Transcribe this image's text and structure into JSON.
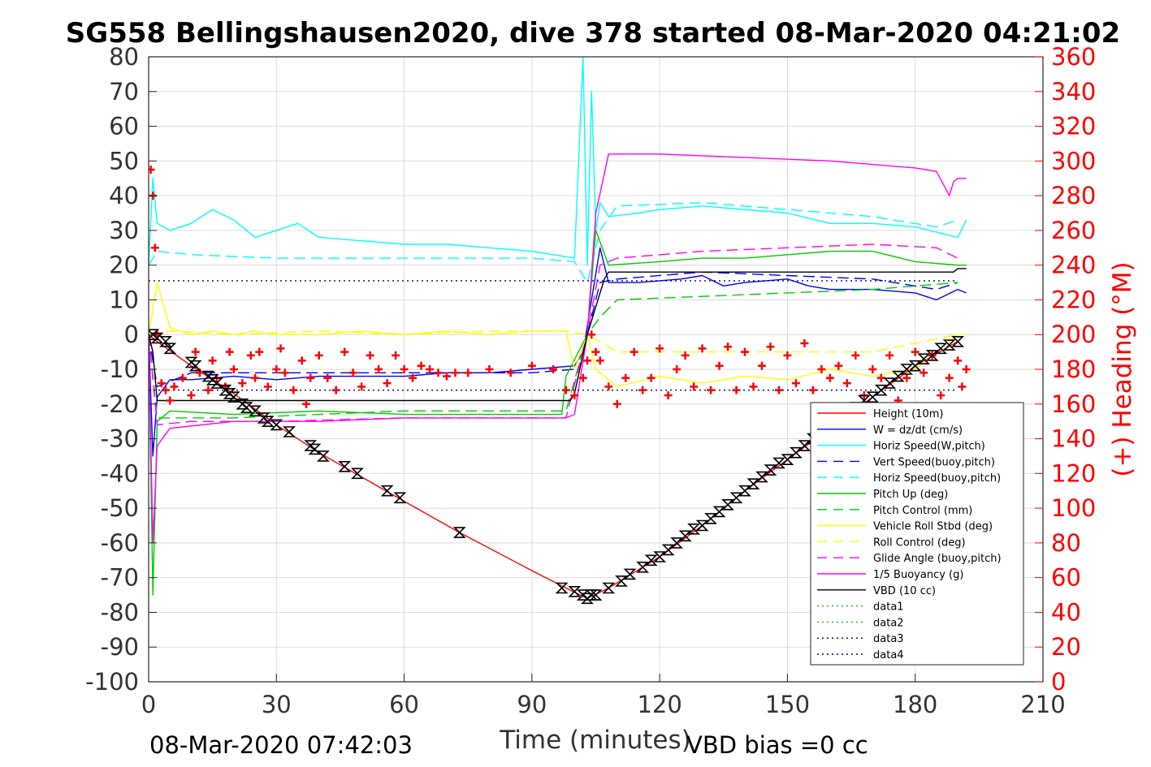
{
  "chart_data": {
    "type": "line",
    "title": "SG558 Bellingshausen2020, dive 378 started 08-Mar-2020 04:21:02",
    "xlabel": "Time (minutes)",
    "ylabel_right": "(+) Heading (°M)",
    "xlim": [
      0,
      210
    ],
    "ylim_left": [
      -100,
      80
    ],
    "ylim_right": [
      0,
      360
    ],
    "x_ticks": [
      0,
      30,
      60,
      90,
      120,
      150,
      180,
      210
    ],
    "y_ticks_left": [
      80,
      70,
      60,
      50,
      40,
      30,
      20,
      10,
      0,
      -10,
      -20,
      -30,
      -40,
      -50,
      -60,
      -70,
      -80,
      -90,
      -100
    ],
    "y_ticks_right": [
      360,
      340,
      320,
      300,
      280,
      260,
      240,
      220,
      200,
      180,
      160,
      140,
      120,
      100,
      80,
      60,
      40,
      20,
      0
    ],
    "grid": true,
    "legend_position": "bottom-right",
    "footer_left": "08-Mar-2020 07:42:03",
    "footer_right": "VBD bias =0 cc",
    "series": [
      {
        "name": "Height (10m)",
        "color": "#ff0000",
        "style": "solid",
        "x": [
          0,
          2,
          10,
          20,
          30,
          40,
          50,
          60,
          73,
          90,
          98,
          103,
          108,
          120,
          130,
          140,
          150,
          160,
          170,
          180,
          190
        ],
        "y": [
          0,
          -2,
          -9,
          -17,
          -26,
          -34,
          -41,
          -48,
          -57,
          -68,
          -73,
          -76,
          -73,
          -64,
          -55,
          -45,
          -36,
          -27,
          -18,
          -9,
          -2
        ]
      },
      {
        "name": "W = dz/dt (cm/s)",
        "color": "#0000ff",
        "style": "solid",
        "x": [
          0,
          1,
          2,
          5,
          10,
          20,
          30,
          40,
          50,
          60,
          70,
          80,
          90,
          100,
          102,
          104,
          106,
          108,
          115,
          125,
          130,
          135,
          140,
          150,
          155,
          160,
          170,
          180,
          185,
          190,
          192
        ],
        "y": [
          0,
          -35,
          -18,
          -13,
          -13,
          -12,
          -13,
          -12,
          -12,
          -12,
          -11,
          -11,
          -10,
          -9,
          -5,
          10,
          25,
          15,
          15,
          16,
          17,
          14,
          15,
          16,
          14,
          13,
          13,
          12,
          10,
          13,
          12
        ]
      },
      {
        "name": "Horiz Speed(W,pitch)",
        "color": "#00ffff",
        "style": "solid",
        "x": [
          0,
          1,
          2,
          5,
          10,
          15,
          20,
          25,
          30,
          35,
          40,
          50,
          60,
          70,
          80,
          90,
          100,
          102,
          103,
          104,
          105,
          106,
          108,
          115,
          120,
          130,
          140,
          150,
          160,
          170,
          180,
          190,
          192
        ],
        "y": [
          20,
          45,
          32,
          30,
          32,
          36,
          33,
          28,
          30,
          32,
          28,
          27,
          26,
          26,
          25,
          24,
          22,
          80,
          20,
          70,
          30,
          38,
          34,
          35,
          36,
          37,
          36,
          35,
          32,
          32,
          31,
          28,
          33
        ]
      },
      {
        "name": "Vert Speed(buoy,pitch)",
        "color": "#0000ff",
        "style": "dashed",
        "x": [
          0,
          2,
          10,
          30,
          60,
          90,
          100,
          103,
          106,
          110,
          130,
          150,
          170,
          185,
          190
        ],
        "y": [
          0,
          -15,
          -11,
          -11,
          -11,
          -11,
          -10,
          0,
          15,
          16,
          18,
          17,
          16,
          13,
          15
        ]
      },
      {
        "name": "Horiz Speed(buoy,pitch)",
        "color": "#00ffff",
        "style": "dashed",
        "x": [
          0,
          2,
          10,
          30,
          60,
          90,
          100,
          103,
          106,
          110,
          130,
          150,
          170,
          185,
          190
        ],
        "y": [
          20,
          24,
          23,
          22,
          22,
          22,
          21,
          15,
          30,
          37,
          38,
          36,
          34,
          31,
          33
        ]
      },
      {
        "name": "Pitch Up (deg)",
        "color": "#00cc00",
        "style": "solid",
        "x": [
          0,
          1,
          2,
          5,
          20,
          40,
          60,
          80,
          97,
          98,
          103,
          105,
          108,
          120,
          130,
          140,
          150,
          160,
          170,
          180,
          190,
          192
        ],
        "y": [
          0,
          -75,
          -25,
          -22,
          -23,
          -22,
          -23,
          -23,
          -23,
          -12,
          0,
          30,
          20,
          21,
          22,
          22,
          23,
          24,
          24,
          21,
          20,
          20
        ]
      },
      {
        "name": "Pitch Control (mm)",
        "color": "#00cc00",
        "style": "dashed",
        "x": [
          0,
          2,
          20,
          40,
          60,
          90,
          98,
          103,
          106,
          110,
          130,
          150,
          170,
          190
        ],
        "y": [
          0,
          -24,
          -24,
          -23,
          -22,
          -22,
          -22,
          0,
          5,
          10,
          11,
          12,
          13,
          15
        ]
      },
      {
        "name": "Vehicle Roll Stbd (deg)",
        "color": "#ffff00",
        "style": "solid",
        "x": [
          0,
          2,
          5,
          10,
          15,
          20,
          25,
          30,
          40,
          50,
          60,
          70,
          80,
          90,
          98,
          100,
          103,
          105,
          110,
          120,
          130,
          140,
          150,
          160,
          170,
          180,
          190,
          192
        ],
        "y": [
          0,
          15,
          2,
          0,
          1,
          0,
          1,
          0,
          0,
          1,
          0,
          1,
          0,
          1,
          1,
          -10,
          0,
          -10,
          -15,
          -12,
          -14,
          -12,
          -13,
          -10,
          -12,
          -10,
          0,
          0
        ]
      },
      {
        "name": "Roll Control (deg)",
        "color": "#ffff00",
        "style": "dashed",
        "x": [
          0,
          5,
          20,
          40,
          60,
          80,
          98,
          103,
          110,
          130,
          150,
          170,
          190
        ],
        "y": [
          0,
          1,
          0,
          1,
          0,
          1,
          1,
          0,
          -5,
          -5,
          -5,
          -5,
          0
        ]
      },
      {
        "name": "Glide Angle (buoy,pitch)",
        "color": "#ff00ff",
        "style": "dashed",
        "x": [
          0,
          2,
          10,
          30,
          60,
          90,
          98,
          103,
          106,
          110,
          130,
          150,
          170,
          185,
          190
        ],
        "y": [
          0,
          -26,
          -25,
          -25,
          -24,
          -24,
          -24,
          0,
          20,
          22,
          24,
          25,
          26,
          25,
          22
        ]
      },
      {
        "name": "1/5 Buoyancy (g)",
        "color": "#ff00ff",
        "style": "solid",
        "x": [
          0,
          1,
          2,
          5,
          20,
          40,
          60,
          80,
          98,
          100,
          103,
          105,
          108,
          120,
          140,
          160,
          180,
          185,
          188,
          189,
          190,
          192
        ],
        "y": [
          0,
          -60,
          -32,
          -27,
          -25,
          -25,
          -24,
          -24,
          -24,
          -23,
          0,
          35,
          52,
          52,
          51,
          50,
          48,
          47,
          40,
          44,
          45,
          45
        ]
      },
      {
        "name": "VBD (10 cc)",
        "color": "#000000",
        "style": "solid",
        "x": [
          0,
          1,
          2,
          99,
          100,
          103,
          107,
          108,
          150,
          189,
          190,
          192
        ],
        "y": [
          0,
          -5,
          -19,
          -19,
          -17,
          0,
          16,
          18,
          18,
          18,
          19,
          19
        ]
      },
      {
        "name": "data1",
        "color": "#00cc00",
        "style": "dotted",
        "x": [],
        "y": []
      },
      {
        "name": "data2",
        "color": "#00cc00",
        "style": "dotted",
        "x": [],
        "y": []
      },
      {
        "name": "data3",
        "color": "#000080",
        "style": "dotted",
        "x": [
          0,
          190
        ],
        "y": [
          -16,
          -16
        ]
      },
      {
        "name": "data4",
        "color": "#000080",
        "style": "dotted",
        "x": [
          0,
          190
        ],
        "y": [
          15.5,
          15.5
        ]
      }
    ],
    "heading_points": {
      "color": "#ff0000",
      "marker": "+",
      "axis": "right",
      "x": [
        0.5,
        1,
        1.5,
        2,
        3,
        4,
        5,
        6,
        8,
        10,
        11,
        12,
        14,
        15,
        16,
        18,
        19,
        20,
        22,
        24,
        25,
        26,
        28,
        30,
        31,
        32,
        34,
        36,
        37,
        38,
        40,
        42,
        44,
        46,
        48,
        50,
        52,
        54,
        56,
        58,
        60,
        62,
        64,
        66,
        68,
        70,
        72,
        75,
        80,
        85,
        90,
        95,
        98,
        100,
        102,
        103,
        104,
        105,
        106,
        108,
        110,
        112,
        114,
        116,
        118,
        120,
        122,
        124,
        126,
        128,
        130,
        132,
        134,
        136,
        138,
        140,
        142,
        144,
        146,
        148,
        150,
        152,
        154,
        156,
        158,
        160,
        162,
        164,
        166,
        168,
        170,
        172,
        174,
        176,
        178,
        180,
        182,
        184,
        186,
        188,
        190,
        191,
        192
      ],
      "y": [
        295,
        280,
        250,
        200,
        172,
        168,
        162,
        170,
        175,
        165,
        190,
        178,
        168,
        185,
        175,
        170,
        190,
        180,
        172,
        188,
        175,
        190,
        170,
        180,
        192,
        178,
        168,
        185,
        160,
        175,
        188,
        175,
        168,
        190,
        178,
        170,
        188,
        180,
        172,
        188,
        180,
        175,
        182,
        180,
        178,
        176,
        178,
        178,
        180,
        178,
        182,
        180,
        168,
        165,
        175,
        185,
        200,
        190,
        185,
        170,
        160,
        175,
        190,
        168,
        175,
        192,
        165,
        180,
        188,
        170,
        192,
        168,
        182,
        193,
        168,
        190,
        170,
        182,
        193,
        168,
        188,
        172,
        195,
        168,
        180,
        175,
        182,
        172,
        188,
        165,
        180,
        175,
        188,
        162,
        175,
        190,
        178,
        188,
        165,
        175,
        185,
        170,
        180
      ]
    },
    "depth_markers": {
      "color": "#000000",
      "marker": "hourglass",
      "x": [
        1,
        2,
        4,
        5,
        10,
        11,
        14,
        15,
        16,
        18,
        19,
        20,
        22,
        23,
        25,
        27,
        28,
        30,
        33,
        38,
        39,
        41,
        46,
        49,
        56,
        59,
        73,
        97,
        100,
        102,
        103,
        104,
        105,
        108,
        111,
        113,
        116,
        118,
        120,
        122,
        124,
        126,
        128,
        130,
        132,
        134,
        136,
        138,
        140,
        142,
        144,
        146,
        148,
        150,
        152,
        154,
        156,
        158,
        160,
        162,
        164,
        166,
        168,
        170,
        172,
        174,
        176,
        178,
        180,
        182,
        184,
        186,
        188,
        190
      ],
      "y": [
        0,
        -1,
        -2,
        -4,
        -8,
        -9,
        -12,
        -13,
        -14,
        -16,
        -17,
        -18,
        -20,
        -21,
        -22,
        -24,
        -25,
        -26,
        -28,
        -32,
        -33,
        -35,
        -38,
        -40,
        -45,
        -47,
        -57,
        -73,
        -74,
        -75,
        -76,
        -75,
        -75,
        -73,
        -71,
        -69,
        -67,
        -65,
        -64,
        -62,
        -60,
        -58,
        -56,
        -55,
        -53,
        -51,
        -49,
        -47,
        -45,
        -43,
        -41,
        -39,
        -37,
        -36,
        -34,
        -32,
        -30,
        -28,
        -27,
        -25,
        -23,
        -21,
        -19,
        -18,
        -16,
        -14,
        -12,
        -10,
        -9,
        -7,
        -6,
        -4,
        -3,
        -2
      ]
    }
  }
}
